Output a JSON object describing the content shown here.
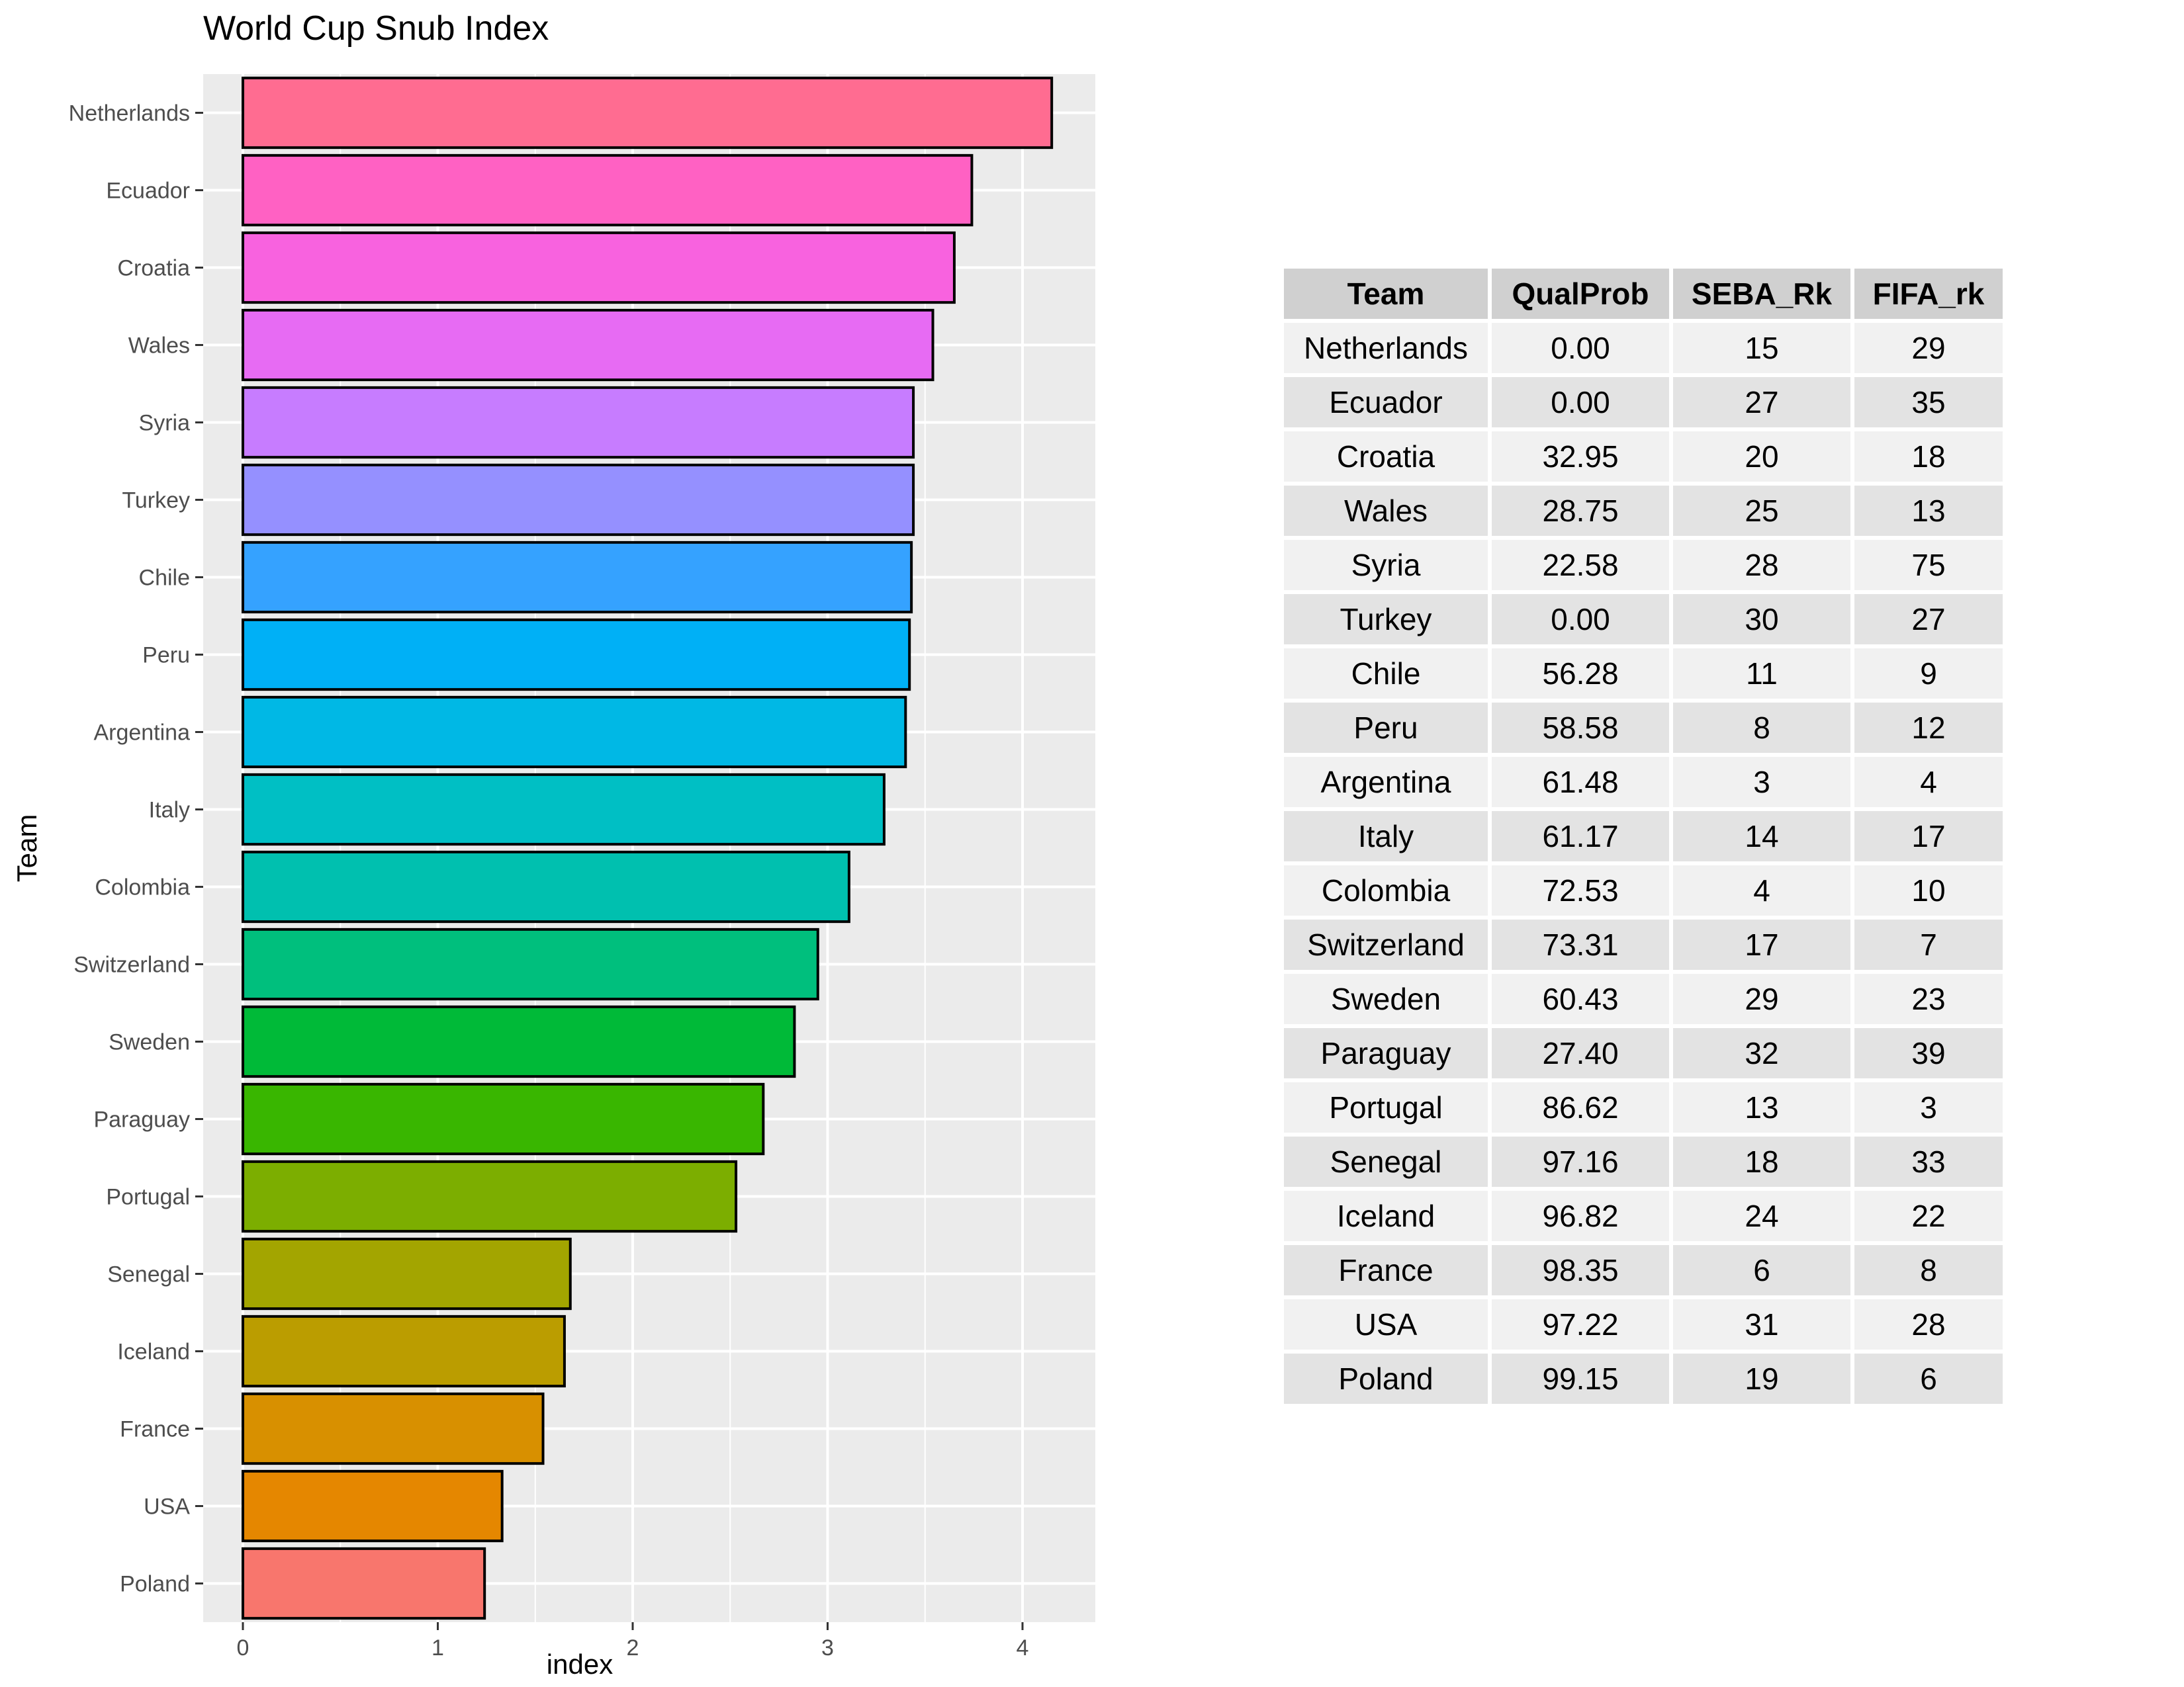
{
  "chart_data": {
    "type": "bar",
    "orientation": "horizontal",
    "title": "World Cup Snub Index",
    "xlabel": "index",
    "ylabel": "Team",
    "xlim": [
      0,
      4.35
    ],
    "x_ticks": [
      0,
      1,
      2,
      3,
      4
    ],
    "grid": true,
    "legend": "none",
    "categories": [
      "Netherlands",
      "Ecuador",
      "Croatia",
      "Wales",
      "Syria",
      "Turkey",
      "Chile",
      "Peru",
      "Argentina",
      "Italy",
      "Colombia",
      "Switzerland",
      "Sweden",
      "Paraguay",
      "Portugal",
      "Senegal",
      "Iceland",
      "France",
      "USA",
      "Poland"
    ],
    "values": [
      4.15,
      3.74,
      3.65,
      3.54,
      3.44,
      3.44,
      3.43,
      3.42,
      3.4,
      3.29,
      3.11,
      2.95,
      2.83,
      2.67,
      2.53,
      1.68,
      1.65,
      1.54,
      1.33,
      1.24
    ],
    "colors": [
      "#FF6C91",
      "#FF61C3",
      "#F862DF",
      "#E76BF3",
      "#C77CFF",
      "#9590FF",
      "#35A2FF",
      "#00B0F6",
      "#00B8E5",
      "#00BFC4",
      "#00C0AF",
      "#00BF7D",
      "#00BA38",
      "#39B600",
      "#7CAE00",
      "#A3A500",
      "#BB9D00",
      "#D89000",
      "#E58700",
      "#F8766D"
    ]
  },
  "table": {
    "headers": [
      "Team",
      "QualProb",
      "SEBA_Rk",
      "FIFA_rk"
    ],
    "rows": [
      [
        "Netherlands",
        "0.00",
        "15",
        "29"
      ],
      [
        "Ecuador",
        "0.00",
        "27",
        "35"
      ],
      [
        "Croatia",
        "32.95",
        "20",
        "18"
      ],
      [
        "Wales",
        "28.75",
        "25",
        "13"
      ],
      [
        "Syria",
        "22.58",
        "28",
        "75"
      ],
      [
        "Turkey",
        "0.00",
        "30",
        "27"
      ],
      [
        "Chile",
        "56.28",
        "11",
        "9"
      ],
      [
        "Peru",
        "58.58",
        "8",
        "12"
      ],
      [
        "Argentina",
        "61.48",
        "3",
        "4"
      ],
      [
        "Italy",
        "61.17",
        "14",
        "17"
      ],
      [
        "Colombia",
        "72.53",
        "4",
        "10"
      ],
      [
        "Switzerland",
        "73.31",
        "17",
        "7"
      ],
      [
        "Sweden",
        "60.43",
        "29",
        "23"
      ],
      [
        "Paraguay",
        "27.40",
        "32",
        "39"
      ],
      [
        "Portugal",
        "86.62",
        "13",
        "3"
      ],
      [
        "Senegal",
        "97.16",
        "18",
        "33"
      ],
      [
        "Iceland",
        "96.82",
        "24",
        "22"
      ],
      [
        "France",
        "98.35",
        "6",
        "8"
      ],
      [
        "USA",
        "97.22",
        "31",
        "28"
      ],
      [
        "Poland",
        "99.15",
        "19",
        "6"
      ]
    ]
  }
}
